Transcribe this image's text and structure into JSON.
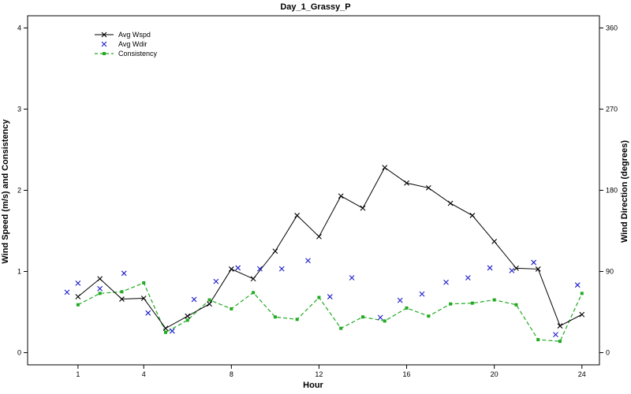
{
  "chart_data": {
    "type": "line",
    "title": "Day_1_Grassy_P",
    "xlabel": "Hour",
    "ylabel_left": "Wind Speed (m/s) and Consistency",
    "ylabel_right": "Wind Direction (degrees)",
    "xlim": [
      -1.3,
      24.8
    ],
    "ylim_left": [
      -0.15,
      4.15
    ],
    "ylim_right": [
      -13.5,
      373.5
    ],
    "x_ticks": [
      1,
      4,
      8,
      12,
      16,
      20,
      24
    ],
    "x_tick_labels": [
      "1",
      "4",
      "8",
      "12",
      "16",
      "20",
      "24"
    ],
    "y_left_ticks": [
      0,
      1,
      2,
      3,
      4
    ],
    "y_left_tick_labels": [
      "0",
      "1",
      "2",
      "3",
      "4"
    ],
    "y_right_ticks": [
      0,
      90,
      180,
      270,
      360
    ],
    "y_right_tick_labels": [
      "0",
      "90",
      "180",
      "270",
      "360"
    ],
    "grid": false,
    "legend_position": "top-left",
    "series": [
      {
        "name": "Avg Wspd",
        "axis": "left",
        "style": "solid-line-x-marker",
        "color": "#000000",
        "x": [
          1,
          2,
          3,
          4,
          5,
          6,
          7,
          8,
          9,
          10,
          11,
          12,
          13,
          14,
          15,
          16,
          17,
          18,
          19,
          20,
          21,
          22,
          23,
          24
        ],
        "y": [
          0.69,
          0.91,
          0.66,
          0.67,
          0.3,
          0.45,
          0.6,
          1.03,
          0.91,
          1.25,
          1.69,
          1.43,
          1.93,
          1.78,
          2.28,
          2.09,
          2.03,
          1.84,
          1.69,
          1.37,
          1.04,
          1.03,
          0.33,
          0.47
        ]
      },
      {
        "name": "Avg Wdir",
        "axis": "right",
        "style": "x-marker-only",
        "color": "#1a1acc",
        "x": [
          0.5,
          1.0,
          2.0,
          3.1,
          4.2,
          5.3,
          6.3,
          7.3,
          8.3,
          9.3,
          10.3,
          11.5,
          12.5,
          13.5,
          14.8,
          15.7,
          16.7,
          17.8,
          18.8,
          19.8,
          20.8,
          21.8,
          22.8,
          23.8
        ],
        "y": [
          67,
          77,
          71,
          88,
          44,
          24,
          59,
          79,
          94,
          93,
          93,
          102,
          62,
          83,
          39,
          58,
          65,
          78,
          83,
          94,
          91,
          100,
          20,
          75
        ]
      },
      {
        "name": "Consistency",
        "axis": "left",
        "style": "dashed-line-square-marker",
        "color": "#22aa22",
        "x": [
          1,
          2,
          3,
          4,
          5,
          6,
          7,
          8,
          9,
          10,
          11,
          12,
          13,
          14,
          15,
          16,
          17,
          18,
          19,
          20,
          21,
          22,
          23,
          24
        ],
        "y": [
          0.59,
          0.73,
          0.75,
          0.86,
          0.25,
          0.4,
          0.65,
          0.54,
          0.74,
          0.44,
          0.41,
          0.68,
          0.3,
          0.44,
          0.39,
          0.55,
          0.45,
          0.6,
          0.61,
          0.65,
          0.59,
          0.16,
          0.14,
          0.73
        ]
      }
    ]
  }
}
